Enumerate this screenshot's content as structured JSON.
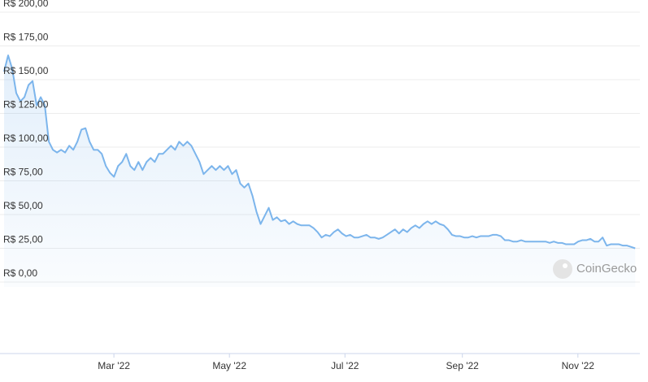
{
  "chart_data": {
    "type": "line",
    "watermark": "CoinGecko",
    "x": [
      2,
      4.15,
      6.3,
      8.45,
      10.6,
      12.75,
      14.9,
      17.05,
      19.2,
      21.35,
      23.5,
      25.65,
      27.8,
      29.95,
      32.1,
      34.25,
      36.4,
      38.55,
      40.7,
      42.85,
      45,
      47.15,
      49.3,
      51.45,
      53.6,
      55.75,
      57.9,
      60.05,
      62.2,
      64.35,
      66.5,
      68.65,
      70.8,
      72.95,
      75.1,
      77.25,
      79.4,
      81.55,
      83.7,
      85.85,
      88,
      90.15,
      92.3,
      94.45,
      96.6,
      98.75,
      100.9,
      103.05,
      105.2,
      107.35,
      109.5,
      111.65,
      113.8,
      115.95,
      118.1,
      120.25,
      122.4,
      124.55,
      126.7,
      128.85,
      131,
      133.15,
      135.3,
      137.45,
      139.6,
      141.75,
      143.9,
      146.05,
      148.2,
      150.35,
      152.5,
      154.65,
      156.8,
      158.95,
      161.1,
      163.25,
      165.4,
      167.55,
      169.7,
      171.85,
      174,
      176.15,
      178.3,
      180.45,
      182.6,
      184.75,
      186.9,
      189.05,
      191.2,
      193.35,
      195.5,
      197.65,
      199.8,
      201.95,
      204.1,
      206.25,
      208.4,
      210.55,
      212.7,
      214.85,
      217,
      219.15,
      221.3,
      223.45,
      225.6,
      227.75,
      229.9,
      232.05,
      234.2,
      236.35,
      238.5,
      240.65,
      242.8,
      244.95,
      247.1,
      249.25,
      251.4,
      253.55,
      255.7,
      257.85,
      260,
      262.15,
      264.3,
      266.45,
      268.6,
      270.75,
      272.9,
      275.05,
      277.2,
      279.35,
      281.5,
      283.65,
      285.8,
      287.95,
      290.1,
      292.25,
      294.4,
      296.55,
      298.7,
      300.85,
      303,
      305.15,
      307.3,
      309.45,
      311.6,
      313.75,
      315.9,
      318.05,
      320.2,
      322.35,
      324.5,
      326.65,
      328.8,
      330.95,
      333.1,
      335.25
    ],
    "series": [
      {
        "color": "#7cb5ec",
        "values": [
          156,
          168,
          158,
          140,
          134,
          137,
          146,
          149,
          131,
          137,
          131,
          104,
          98,
          96,
          98,
          96,
          101,
          98,
          104,
          113,
          114,
          104,
          98,
          98,
          95,
          86,
          81,
          78,
          86,
          89,
          95,
          86,
          83,
          89,
          83,
          89,
          92,
          89,
          95,
          95,
          98,
          101,
          98,
          104,
          101,
          104,
          101,
          95,
          89,
          80,
          83,
          86,
          83,
          86,
          83,
          86,
          80,
          83,
          73,
          70,
          73,
          64,
          52,
          43,
          49,
          55,
          46,
          48,
          45,
          46,
          43,
          45,
          43,
          42,
          42,
          42,
          40,
          37,
          33,
          35,
          34,
          37,
          39,
          36,
          34,
          35,
          33,
          33,
          34,
          35,
          33,
          33,
          32,
          33,
          35,
          37,
          39,
          36,
          39,
          37,
          40,
          42,
          40,
          43,
          45,
          43,
          45,
          43,
          42,
          39,
          35,
          34,
          34,
          33,
          33,
          34,
          33,
          34,
          34,
          34,
          35,
          35,
          34,
          31,
          31,
          30,
          30,
          31,
          30,
          30,
          30,
          30,
          30,
          30,
          29,
          30,
          29,
          29,
          28,
          28,
          28,
          30,
          31,
          31,
          32,
          30,
          30,
          33,
          27,
          28,
          28,
          28,
          27,
          27,
          26,
          25
        ]
      }
    ],
    "xlim": [
      2,
      336
    ],
    "xticks": [
      {
        "value": 60,
        "label": "Mar '22"
      },
      {
        "value": 121,
        "label": "May '22"
      },
      {
        "value": 182,
        "label": "Jul '22"
      },
      {
        "value": 244,
        "label": "Sep '22"
      },
      {
        "value": 305,
        "label": "Nov '22"
      }
    ],
    "ylim": [
      0,
      200
    ],
    "yticks": [
      {
        "value": 0,
        "label": "R$ 0,00"
      },
      {
        "value": 25,
        "label": "R$ 25,00"
      },
      {
        "value": 50,
        "label": "R$ 50,00"
      },
      {
        "value": 75,
        "label": "R$ 75,00"
      },
      {
        "value": 100,
        "label": "R$ 100,00"
      },
      {
        "value": 125,
        "label": "R$ 125,00"
      },
      {
        "value": 150,
        "label": "R$ 150,00"
      },
      {
        "value": 175,
        "label": "R$ 175,00"
      },
      {
        "value": 200,
        "label": "R$ 200,00"
      }
    ],
    "grid": true
  }
}
